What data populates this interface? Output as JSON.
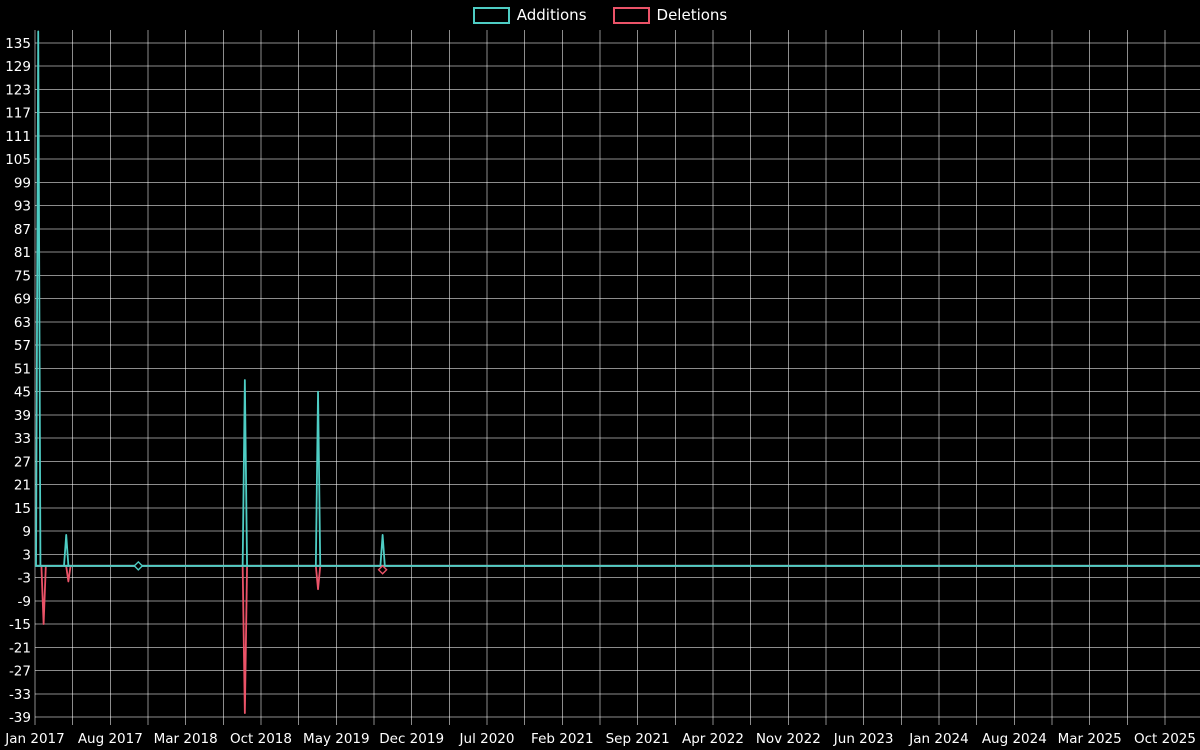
{
  "legend": {
    "items": [
      {
        "label": "Additions",
        "color": "#4ecdc4"
      },
      {
        "label": "Deletions",
        "color": "#eb5368"
      }
    ]
  },
  "chart_data": {
    "type": "line",
    "title": "",
    "xlabel": "",
    "ylabel": "",
    "background": "#000000",
    "grid": true,
    "legend_position": "top-center",
    "x_labels": [
      "Jan 2017",
      "Aug 2017",
      "Mar 2018",
      "Oct 2018",
      "May 2019",
      "Dec 2019",
      "Jul 2020",
      "Feb 2021",
      "Sep 2021",
      "Apr 2022",
      "Nov 2022",
      "Jun 2023",
      "Jan 2024",
      "Aug 2024",
      "Mar 2025",
      "Oct 2025"
    ],
    "x_label_interval_months": 7,
    "x_months_total": 105,
    "y_ticks": [
      135,
      129,
      123,
      117,
      111,
      105,
      99,
      93,
      87,
      81,
      75,
      69,
      63,
      57,
      51,
      45,
      39,
      33,
      27,
      21,
      15,
      9,
      3,
      -3,
      -9,
      -15,
      -21,
      -27,
      -33,
      -39
    ],
    "ylim": [
      -39,
      138.5
    ],
    "series": [
      {
        "name": "Additions",
        "color": "#4ecdc4",
        "baseline": 0,
        "spikes": [
          {
            "date": "Jan 2017",
            "month": 0.3,
            "value": 138
          },
          {
            "date": "Apr 2017",
            "month": 2.9,
            "value": 8
          },
          {
            "date": "Sep 2018",
            "month": 19.5,
            "value": 48
          },
          {
            "date": "Apr 2019",
            "month": 26.3,
            "value": 45
          },
          {
            "date": "Nov 2019",
            "month": 32.3,
            "value": 8
          }
        ]
      },
      {
        "name": "Deletions",
        "color": "#eb5368",
        "baseline": 0,
        "spikes": [
          {
            "date": "Jan 2017",
            "month": 0.8,
            "value": -15
          },
          {
            "date": "Apr 2017",
            "month": 3.1,
            "value": -4
          },
          {
            "date": "Sep 2018",
            "month": 19.5,
            "value": -38
          },
          {
            "date": "Apr 2019",
            "month": 26.3,
            "value": -6
          },
          {
            "date": "Nov 2019",
            "month": 32.3,
            "value": -1
          }
        ]
      }
    ],
    "markers": [
      {
        "series": "Additions",
        "date": "Nov 2017",
        "month": 9.6,
        "value": 0,
        "shape": "diamond"
      },
      {
        "series": "Deletions",
        "date": "Nov 2019",
        "month": 32.3,
        "value": -1,
        "shape": "diamond"
      }
    ]
  }
}
